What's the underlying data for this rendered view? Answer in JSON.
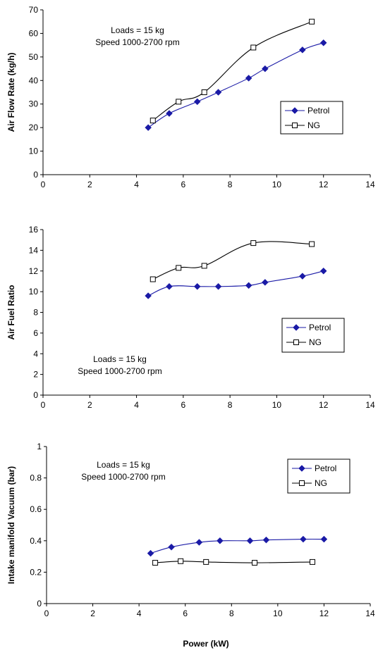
{
  "figure": {
    "xlabel": "Power (kW)"
  },
  "chart_data": [
    {
      "type": "line",
      "title": "",
      "xlabel": "",
      "ylabel": "Air Flow Rate (kg/h)",
      "xlim": [
        0,
        14
      ],
      "ylim": [
        0,
        70
      ],
      "xticks": [
        0,
        2,
        4,
        6,
        8,
        10,
        12,
        14
      ],
      "yticks": [
        0,
        10,
        20,
        30,
        40,
        50,
        60,
        70
      ],
      "grid": false,
      "legend": "right",
      "annotation": [
        "Loads = 15 kg",
        "Speed 1000-2700 rpm"
      ],
      "series": [
        {
          "name": "Petrol",
          "marker": "diamond",
          "color": "#1a1aa6",
          "x": [
            4.5,
            5.4,
            6.6,
            7.5,
            8.8,
            9.5,
            11.1,
            12.0
          ],
          "y": [
            20,
            26,
            31,
            35,
            41,
            45,
            53,
            56
          ]
        },
        {
          "name": "NG",
          "marker": "square-open",
          "color": "#000000",
          "x": [
            4.7,
            5.8,
            6.9,
            9.0,
            11.5
          ],
          "y": [
            23,
            31,
            35,
            54,
            65
          ]
        }
      ]
    },
    {
      "type": "line",
      "title": "",
      "xlabel": "",
      "ylabel": "Air Fuel Ratio",
      "xlim": [
        0,
        14
      ],
      "ylim": [
        0,
        16
      ],
      "xticks": [
        0,
        2,
        4,
        6,
        8,
        10,
        12,
        14
      ],
      "yticks": [
        0,
        2,
        4,
        6,
        8,
        10,
        12,
        14,
        16
      ],
      "grid": false,
      "legend": "right",
      "annotation": [
        "Loads = 15 kg",
        "Speed 1000-2700 rpm"
      ],
      "series": [
        {
          "name": "Petrol",
          "marker": "diamond",
          "color": "#1a1aa6",
          "x": [
            4.5,
            5.4,
            6.6,
            7.5,
            8.8,
            9.5,
            11.1,
            12.0
          ],
          "y": [
            9.6,
            10.5,
            10.5,
            10.5,
            10.6,
            10.9,
            11.5,
            12.0
          ]
        },
        {
          "name": "NG",
          "marker": "square-open",
          "color": "#000000",
          "x": [
            4.7,
            5.8,
            6.9,
            9.0,
            11.5
          ],
          "y": [
            11.2,
            12.3,
            12.5,
            14.7,
            14.6
          ]
        }
      ]
    },
    {
      "type": "line",
      "title": "",
      "xlabel": "Power (kW)",
      "ylabel": "Intake manifold Vacuum (bar)",
      "xlim": [
        0,
        14
      ],
      "ylim": [
        0,
        1
      ],
      "xticks": [
        0,
        2,
        4,
        6,
        8,
        10,
        12,
        14
      ],
      "yticks": [
        "0",
        "0.2",
        "0.4",
        "0.6",
        "0.8",
        "1"
      ],
      "grid": false,
      "legend": "top-right",
      "annotation": [
        "Loads = 15 kg",
        "Speed 1000-2700 rpm"
      ],
      "series": [
        {
          "name": "Petrol",
          "marker": "diamond",
          "color": "#1a1aa6",
          "x": [
            4.5,
            5.4,
            6.6,
            7.5,
            8.8,
            9.5,
            11.1,
            12.0
          ],
          "y": [
            0.32,
            0.36,
            0.39,
            0.4,
            0.4,
            0.405,
            0.41,
            0.41
          ]
        },
        {
          "name": "NG",
          "marker": "square-open",
          "color": "#000000",
          "x": [
            4.7,
            5.8,
            6.9,
            9.0,
            11.5
          ],
          "y": [
            0.26,
            0.27,
            0.265,
            0.26,
            0.265
          ]
        }
      ]
    }
  ]
}
